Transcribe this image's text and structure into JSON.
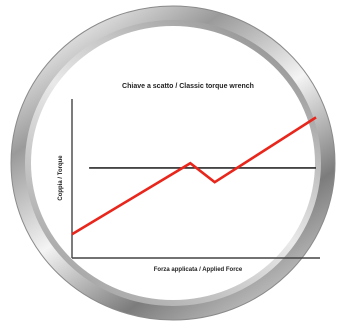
{
  "colors": {
    "background": "#ffffff",
    "bezel_dark": "#6e6e6e",
    "bezel_light": "#f2f2f2",
    "face": "#ffffff",
    "axis": "#444444",
    "reference_line": "#2a2a2a",
    "torque_line": "#e8261c"
  },
  "chart_data": {
    "type": "line",
    "title": "Chiave a scatto / Classic torque wrench",
    "xlabel": "Forza applicata / Applied Force",
    "ylabel": "Coppia / Torque",
    "xlim": [
      0,
      10
    ],
    "ylim": [
      0,
      10
    ],
    "grid": false,
    "legend": "none",
    "series": [
      {
        "x": [
          0,
          4.85,
          5.85,
          10
        ],
        "y": [
          1.5,
          6.0,
          4.8,
          8.9
        ]
      },
      {
        "x": [
          0.7,
          10
        ],
        "y": [
          5.7,
          5.7
        ]
      }
    ]
  }
}
